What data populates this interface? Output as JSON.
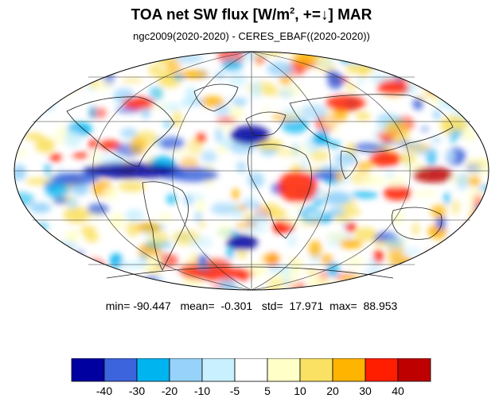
{
  "header": {
    "title_main": "TOA net SW flux [W/m",
    "title_sup": "2",
    "title_rest": ", +=↓]  MAR",
    "subtitle": "ngc2009(2020-2020) - CERES_EBAF((2020-2020))"
  },
  "stats": {
    "min_label": "min=",
    "min": "-90.447",
    "mean_label": "mean=",
    "mean": "-0.301",
    "std_label": "std=",
    "std": "17.971",
    "max_label": "max=",
    "max": "88.953"
  },
  "map": {
    "projection": "Mollweide",
    "central_longitude": 0,
    "field": "difference map"
  },
  "colorbar": {
    "colors": [
      "#0000a0",
      "#3c64dc",
      "#00b4f0",
      "#96d2fa",
      "#c8f0ff",
      "#ffffff",
      "#ffffc8",
      "#fae164",
      "#ffb400",
      "#ff1e00",
      "#be0000"
    ],
    "tick_labels": [
      "-40",
      "-30",
      "-20",
      "-10",
      "-5",
      "5",
      "10",
      "20",
      "30",
      "40"
    ]
  }
}
